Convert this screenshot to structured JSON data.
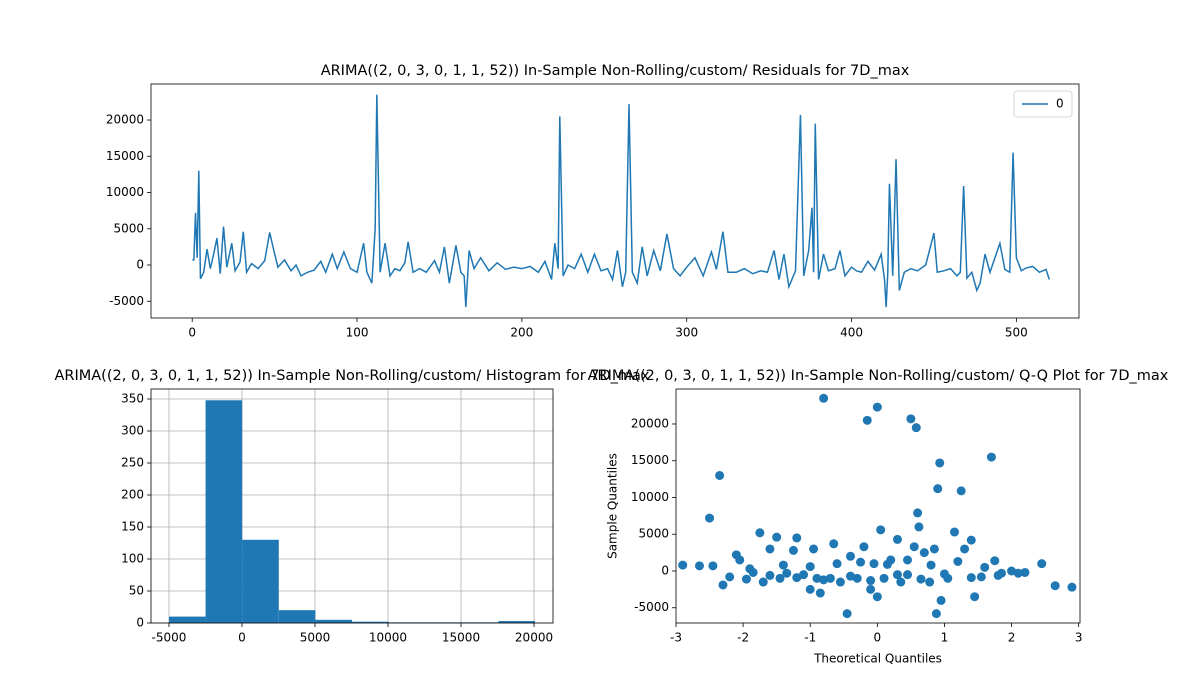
{
  "chart_data": [
    {
      "type": "line",
      "title": "ARIMA((2, 0, 3, 0, 1, 1, 52)) In-Sample Non-Rolling/custom/ Residuals for 7D_max",
      "x": [
        0,
        1,
        2,
        3,
        4,
        5,
        7,
        9,
        11,
        13,
        15,
        17,
        19,
        21,
        24,
        26,
        29,
        31,
        33,
        36,
        40,
        44,
        47,
        49,
        52,
        56,
        60,
        63,
        66,
        70,
        74,
        78,
        81,
        85,
        88,
        92,
        96,
        100,
        104,
        106,
        109,
        111,
        112,
        114,
        117,
        120,
        123,
        126,
        129,
        131,
        134,
        138,
        142,
        147,
        150,
        153,
        156,
        160,
        163,
        165,
        166,
        168,
        171,
        175,
        180,
        185,
        190,
        195,
        200,
        205,
        210,
        214,
        218,
        220,
        222,
        223,
        225,
        228,
        232,
        236,
        240,
        244,
        248,
        252,
        255,
        258,
        261,
        263,
        265,
        267,
        270,
        273,
        276,
        280,
        284,
        288,
        292,
        296,
        300,
        305,
        310,
        315,
        318,
        322,
        325,
        330,
        335,
        340,
        345,
        349,
        353,
        356,
        359,
        362,
        366,
        369,
        371,
        374,
        376,
        377,
        378,
        380,
        383,
        386,
        390,
        393,
        396,
        400,
        403,
        406,
        410,
        414,
        418,
        420,
        421,
        422,
        423,
        425,
        427,
        429,
        432,
        436,
        440,
        445,
        450,
        452,
        456,
        460,
        464,
        466,
        468,
        470,
        473,
        476,
        478,
        481,
        484,
        487,
        490,
        493,
        496,
        498,
        500,
        503,
        506,
        510,
        514,
        518,
        520
      ],
      "series": [
        {
          "name": "0",
          "color": "#1f77b4",
          "values": [
            700,
            700,
            7200,
            1000,
            13000,
            -1900,
            -1000,
            2200,
            -500,
            1500,
            3700,
            -1200,
            5300,
            -300,
            3000,
            -800,
            400,
            4600,
            -1000,
            200,
            -500,
            600,
            4500,
            2500,
            -300,
            700,
            -800,
            0,
            -1500,
            -1000,
            -700,
            500,
            -1000,
            1500,
            -500,
            1800,
            -500,
            -1000,
            3000,
            -1000,
            -2500,
            5000,
            23500,
            -1000,
            3000,
            -1500,
            -500,
            -800,
            300,
            3200,
            -1000,
            -500,
            -1000,
            600,
            -1000,
            2500,
            -2500,
            2700,
            -1000,
            -1500,
            -5800,
            2000,
            -500,
            1000,
            -800,
            300,
            -600,
            -300,
            -500,
            -200,
            -1000,
            500,
            -2000,
            3000,
            -500,
            20500,
            -1500,
            0,
            -500,
            1500,
            -1000,
            1500,
            -800,
            -500,
            -2000,
            2000,
            -3000,
            -1000,
            22200,
            -1000,
            -2500,
            2500,
            -1500,
            2000,
            -800,
            4300,
            -500,
            -1500,
            -300,
            1000,
            -1500,
            1800,
            -600,
            4600,
            -1000,
            -1000,
            -500,
            -1200,
            -800,
            -1000,
            2000,
            -2000,
            1500,
            -3000,
            -800,
            20700,
            -1500,
            2000,
            7900,
            -1000,
            19500,
            -2000,
            1500,
            -800,
            -500,
            2000,
            -1500,
            -300,
            -800,
            -1000,
            500,
            -700,
            1500,
            -2000,
            -5800,
            -1000,
            11200,
            -1500,
            14600,
            -3500,
            -1000,
            -500,
            -800,
            0,
            4400,
            -1000,
            -800,
            -500,
            -1500,
            -1000,
            10900,
            -1800,
            -1000,
            -3500,
            -2500,
            1500,
            -1000,
            1000,
            3000,
            -600,
            -1000,
            15500,
            1000,
            -800,
            -400,
            -200,
            -1000,
            -600,
            -2000
          ]
        }
      ],
      "xlim": [
        -25,
        538
      ],
      "ylim": [
        -7310,
        24970
      ],
      "xticks": [
        0,
        100,
        200,
        300,
        400,
        500
      ],
      "yticks": [
        -5000,
        0,
        5000,
        10000,
        15000,
        20000
      ],
      "grid": false,
      "legend": "upper right"
    },
    {
      "type": "histogram",
      "title": "ARIMA((2, 0, 3, 0, 1, 1, 52)) In-Sample Non-Rolling/custom/ Histogram for 7D_max",
      "bins": [
        -5000,
        -2493,
        14,
        2521,
        5028,
        7535,
        10042,
        12549,
        15056,
        17563,
        20070
      ],
      "values": [
        10,
        348,
        130,
        20,
        5,
        2,
        1,
        1,
        1,
        3
      ],
      "color": "#1f77b4",
      "xlim": [
        -6230,
        21300
      ],
      "ylim": [
        0,
        365.6
      ],
      "xticks": [
        -5000,
        0,
        5000,
        10000,
        15000,
        20000
      ],
      "yticks": [
        0,
        50,
        100,
        150,
        200,
        250,
        300,
        350
      ],
      "grid": true
    },
    {
      "type": "scatter",
      "title": "ARIMA((2, 0, 3, 0, 1, 1, 52)) In-Sample Non-Rolling/custom/ Q-Q Plot for 7D_max",
      "x_label": "Theoretical Quantiles",
      "y_label": "Sample Quantiles",
      "color": "#1f77b4",
      "x": [
        -2.9,
        -2.65,
        -2.5,
        -2.45,
        -2.35,
        -2.3,
        -2.2,
        -2.1,
        -2.05,
        -1.95,
        -1.85,
        -1.75,
        -1.7,
        -1.6,
        -1.5,
        -1.45,
        -1.35,
        -1.25,
        -1.2,
        -1.1,
        -1.0,
        -0.95,
        -0.9,
        -0.85,
        -0.8,
        -0.7,
        -0.65,
        -0.55,
        -0.45,
        -0.4,
        -0.3,
        -0.2,
        -0.15,
        -0.1,
        -0.05,
        0.0,
        0.0,
        0.05,
        0.1,
        0.2,
        0.3,
        0.35,
        0.45,
        0.5,
        0.55,
        0.58,
        0.6,
        0.62,
        0.7,
        0.78,
        0.85,
        0.88,
        0.9,
        0.93,
        0.95,
        1.05,
        1.15,
        1.25,
        1.3,
        1.4,
        1.45,
        1.55,
        1.7,
        1.75,
        1.85,
        2.0,
        2.2,
        2.45,
        2.65,
        2.9,
        -1.9,
        -1.6,
        -1.4,
        -1.2,
        -1.0,
        -0.8,
        -0.6,
        -0.4,
        -0.25,
        -0.1,
        0.15,
        0.3,
        0.45,
        0.65,
        0.8,
        1.0,
        1.2,
        1.4,
        1.6,
        1.8,
        2.1
      ],
      "values": [
        800,
        700,
        7200,
        700,
        13000,
        -1900,
        -800,
        2200,
        1500,
        -1100,
        -200,
        5200,
        -1500,
        3000,
        4600,
        -1000,
        -300,
        2800,
        4500,
        -500,
        -2500,
        3000,
        -1000,
        -3000,
        23500,
        -1000,
        3700,
        -1500,
        -5800,
        2000,
        -1000,
        3300,
        20500,
        -2500,
        1000,
        -3500,
        22300,
        5600,
        -1000,
        1500,
        4300,
        -1500,
        -500,
        20700,
        3300,
        19500,
        7900,
        6000,
        2500,
        -1500,
        3000,
        -5800,
        11200,
        14700,
        -4000,
        -1000,
        5300,
        10900,
        3000,
        4200,
        -3500,
        -800,
        15500,
        1400,
        -300,
        0,
        -200,
        1000,
        -2000,
        -2200,
        300,
        -600,
        800,
        -900,
        600,
        -1200,
        1000,
        -700,
        1200,
        -1300,
        900,
        -500,
        1500,
        -1100,
        800,
        -400,
        1300,
        -900,
        500,
        -600,
        -300
      ],
      "xlim": [
        -3.0,
        3.02
      ],
      "ylim": [
        -7075,
        24760
      ],
      "xticks": [
        -3,
        -2,
        -1,
        0,
        1,
        2,
        3
      ],
      "yticks": [
        -5000,
        0,
        5000,
        10000,
        15000,
        20000
      ],
      "grid": false
    }
  ]
}
